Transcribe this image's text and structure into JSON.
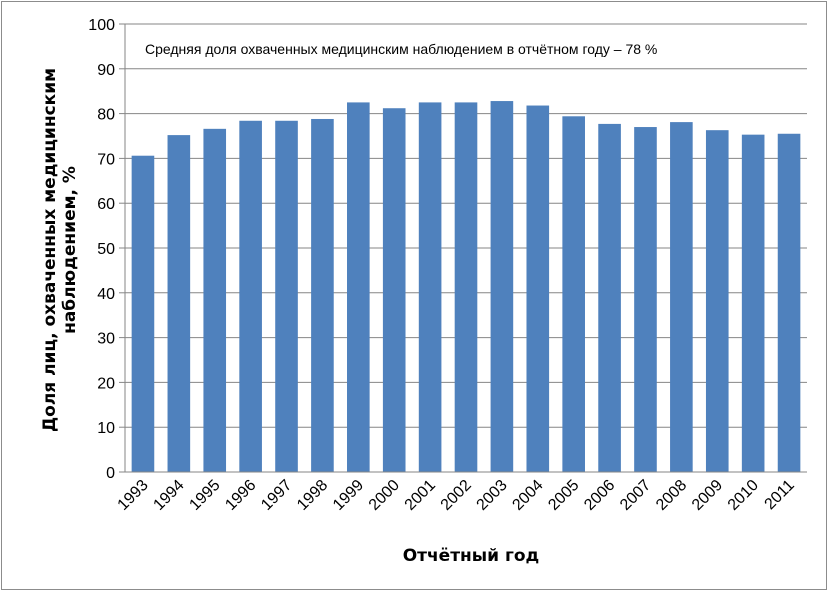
{
  "chart_data": {
    "type": "bar",
    "annotation": "Средняя доля охваченных медицинским наблюдением в отчётном году – 78 %",
    "xlabel": "Отчётный год",
    "ylabel_lines": [
      "Доля лиц, охваченных медицинским",
      "наблюдением, %"
    ],
    "categories": [
      "1993",
      "1994",
      "1995",
      "1996",
      "1997",
      "1998",
      "1999",
      "2000",
      "2001",
      "2002",
      "2003",
      "2004",
      "2005",
      "2006",
      "2007",
      "2008",
      "2009",
      "2010",
      "2011"
    ],
    "values": [
      70.6,
      75.2,
      76.6,
      78.4,
      78.4,
      78.8,
      82.5,
      81.2,
      82.5,
      82.5,
      82.8,
      81.8,
      79.4,
      77.7,
      77.0,
      78.1,
      76.3,
      75.3,
      75.5
    ],
    "ylim": [
      0,
      100
    ],
    "yticks": [
      0,
      10,
      20,
      30,
      40,
      50,
      60,
      70,
      80,
      90,
      100
    ],
    "grid": true,
    "bar_color": "#4f81bd",
    "gridline_color": "#868686"
  }
}
